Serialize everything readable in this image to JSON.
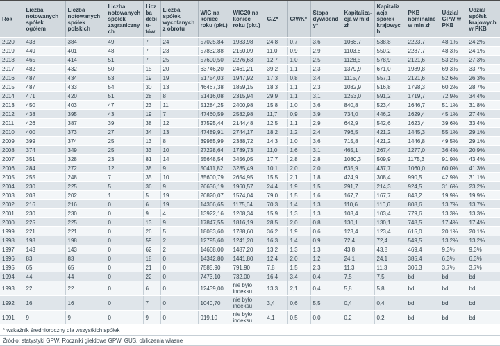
{
  "table": {
    "columns": [
      "Rok",
      "Liczba notowanych spółek ogółem",
      "Liczba notowanych spółek polskich",
      "Liczba notowanych spółek zagranicznych",
      "Liczba debiu­tów",
      "Liczba spółek wycofanych z obrotu",
      "WIG na koniec roku (pkt.)",
      "WIG20 na koniec roku (pkt.)",
      "C/Z*",
      "C/WK*",
      "Stopa dywidendy*",
      "Kapitaliza­cja w mld zł",
      "Kapitaliza­cja spółek krajowych",
      "PKB nominalne w mln zł",
      "Udział GPW w PKB",
      "Udział spółek krajowych w PKB"
    ],
    "rows": [
      [
        "2020",
        "433",
        "384",
        "49",
        "7",
        "24",
        "57025,84",
        "1983,98",
        "24,8",
        "0,7",
        "3,6",
        "1068,7",
        "538,8",
        "2223,7",
        "48,1%",
        "24,2%"
      ],
      [
        "2019",
        "449",
        "401",
        "48",
        "7",
        "23",
        "57832,88",
        "2150,09",
        "11,0",
        "0,9",
        "2,9",
        "1103,8",
        "550,2",
        "2287,7",
        "48,3%",
        "24,1%"
      ],
      [
        "2018",
        "465",
        "414",
        "51",
        "7",
        "25",
        "57690,50",
        "2276,63",
        "12,7",
        "1,0",
        "2,5",
        "1128,5",
        "578,9",
        "2121,6",
        "53,2%",
        "27,3%"
      ],
      [
        "2017",
        "482",
        "432",
        "50",
        "15",
        "20",
        "63746,20",
        "2461,21",
        "39,2",
        "1,1",
        "2,3",
        "1379,9",
        "671,0",
        "1989,8",
        "69,3%",
        "33,7%"
      ],
      [
        "2016",
        "487",
        "434",
        "53",
        "19",
        "19",
        "51754,03",
        "1947,92",
        "17,3",
        "0,8",
        "3,4",
        "1115,7",
        "557,1",
        "2121,6",
        "52,6%",
        "26,3%"
      ],
      [
        "2015",
        "487",
        "433",
        "54",
        "30",
        "13",
        "46467,38",
        "1859,15",
        "18,3",
        "1,1",
        "2,3",
        "1082,9",
        "516,8",
        "1798,3",
        "60,2%",
        "28,7%"
      ],
      [
        "2014",
        "471",
        "420",
        "51",
        "28",
        "8",
        "51416,08",
        "2315,94",
        "29,9",
        "1,1",
        "3,1",
        "1253,0",
        "591,2",
        "1719,7",
        "72,9%",
        "34,4%"
      ],
      [
        "2013",
        "450",
        "403",
        "47",
        "23",
        "11",
        "51284,25",
        "2400,98",
        "15,8",
        "1,0",
        "3,6",
        "840,8",
        "523,4",
        "1646,7",
        "51,1%",
        "31,8%"
      ],
      [
        "2012",
        "438",
        "395",
        "43",
        "19",
        "7",
        "47460,59",
        "2582,98",
        "11,7",
        "0,9",
        "3,9",
        "734,0",
        "446,2",
        "1629,4",
        "45,1%",
        "27,4%"
      ],
      [
        "2011",
        "426",
        "387",
        "39",
        "38",
        "12",
        "37595,44",
        "2144,48",
        "12,5",
        "1,1",
        "2,9",
        "642,9",
        "542,6",
        "1623,4",
        "39,6%",
        "33,4%"
      ],
      [
        "2010",
        "400",
        "373",
        "27",
        "34",
        "13",
        "47489,91",
        "2744,17",
        "18,2",
        "1,2",
        "2,4",
        "796,5",
        "421,2",
        "1445,3",
        "55,1%",
        "29,1%"
      ],
      [
        "2009",
        "399",
        "374",
        "25",
        "13",
        "8",
        "39985,99",
        "2388,72",
        "14,3",
        "1,0",
        "3,6",
        "715,8",
        "421,2",
        "1446,8",
        "49,5%",
        "29,1%"
      ],
      [
        "2008",
        "374",
        "349",
        "25",
        "33",
        "10",
        "27228,64",
        "1789,73",
        "11,0",
        "1,6",
        "3,1",
        "465,1",
        "267,4",
        "1277,0",
        "36,4%",
        "20,9%"
      ],
      [
        "2007",
        "351",
        "328",
        "23",
        "81",
        "14",
        "55648,54",
        "3456,05",
        "17,7",
        "2,8",
        "2,8",
        "1080,3",
        "509,9",
        "1175,3",
        "91,9%",
        "43,4%"
      ],
      [
        "2006",
        "284",
        "272",
        "12",
        "38",
        "9",
        "50411,82",
        "3285,49",
        "10,1",
        "2,0",
        "2,0",
        "635,9",
        "437,7",
        "1060,0",
        "60,0%",
        "41,3%"
      ],
      [
        "2005",
        "255",
        "248",
        "7",
        "35",
        "10",
        "35600,79",
        "2654,95",
        "15,5",
        "2,1",
        "1,8",
        "424,9",
        "308,4",
        "990,5",
        "42,9%",
        "31,1%"
      ],
      [
        "2004",
        "230",
        "225",
        "5",
        "36",
        "9",
        "26636,19",
        "1960,57",
        "24,4",
        "1,9",
        "1,5",
        "291,7",
        "214,3",
        "924,5",
        "31,6%",
        "23,2%"
      ],
      [
        "2003",
        "203",
        "202",
        "1",
        "5",
        "19",
        "20820,07",
        "1574,04",
        "79,0",
        "1,5",
        "1,6",
        "167,7",
        "167,7",
        "843,2",
        "19,9%",
        "19,9%"
      ],
      [
        "2002",
        "216",
        "216",
        "0",
        "6",
        "19",
        "14366,65",
        "1175,64",
        "70,3",
        "1,4",
        "1,3",
        "110,6",
        "110,6",
        "808,6",
        "13,7%",
        "13,7%"
      ],
      [
        "2001",
        "230",
        "230",
        "0",
        "9",
        "4",
        "13922,16",
        "1208,34",
        "15,9",
        "1,3",
        "1,3",
        "103,4",
        "103,4",
        "779,6",
        "13,3%",
        "13,3%"
      ],
      [
        "2000",
        "225",
        "225",
        "0",
        "13",
        "9",
        "17847,55",
        "1816,19",
        "28,5",
        "2,0",
        "0,8",
        "130,1",
        "130,1",
        "748,5",
        "17,4%",
        "17,4%"
      ],
      [
        "1999",
        "221",
        "221",
        "0",
        "26",
        "5",
        "18083,60",
        "1788,60",
        "36,2",
        "1,9",
        "0,6",
        "123,4",
        "123,4",
        "615,0",
        "20,1%",
        "20,1%"
      ],
      [
        "1998",
        "198",
        "198",
        "0",
        "59",
        "2",
        "12795,60",
        "1241,20",
        "16,3",
        "1,4",
        "0,9",
        "72,4",
        "72,4",
        "549,5",
        "13,2%",
        "13,2%"
      ],
      [
        "1997",
        "143",
        "143",
        "0",
        "62",
        "2",
        "14668,00",
        "1487,20",
        "13,2",
        "1,3",
        "1,3",
        "43,8",
        "43,8",
        "469,4",
        "9,3%",
        "9,3%"
      ],
      [
        "1996",
        "83",
        "83",
        "0",
        "18",
        "0",
        "14342,80",
        "1441,80",
        "12,4",
        "2,0",
        "1,2",
        "24,1",
        "24,1",
        "385,4",
        "6,3%",
        "6,3%"
      ],
      [
        "1995",
        "65",
        "65",
        "0",
        "21",
        "0",
        "7585,90",
        "791,90",
        "7,8",
        "1,5",
        "2,3",
        "11,3",
        "11,3",
        "306,3",
        "3,7%",
        "3,7%"
      ],
      [
        "1994",
        "44",
        "44",
        "0",
        "22",
        "0",
        "7473,10",
        "732,00",
        "16,4",
        "3,4",
        "0,4",
        "7,5",
        "7,5",
        "bd",
        "bd",
        "bd"
      ],
      [
        "1993",
        "22",
        "22",
        "0",
        "6",
        "0",
        "12439,00",
        "nie było indeksu",
        "13,3",
        "2,1",
        "0,4",
        "5,8",
        "5,8",
        "bd",
        "bd",
        "bd"
      ],
      [
        "1992",
        "16",
        "16",
        "0",
        "7",
        "0",
        "1040,70",
        "nie było indeksu",
        "3,4",
        "0,6",
        "5,5",
        "0,4",
        "0,4",
        "bd",
        "bd",
        "bd"
      ],
      [
        "1991",
        "9",
        "9",
        "0",
        "9",
        "0",
        "919,10",
        "nie było indeksu",
        "4,1",
        "0,5",
        "0,0",
        "0,2",
        "0,2",
        "bd",
        "bd",
        "bd"
      ]
    ],
    "footnotes": [
      "* wskaźnik średnioroczny dla wszystkich spółek",
      "Źródło: statystyki GPW, Roczniki giełdowe GPW, GUS, obliczenia własne"
    ]
  },
  "colors": {
    "header_bg": "#d2d9de",
    "row_shaded_bg": "#dfe5ea",
    "row_plain_bg": "#f3f6f8",
    "text": "#35454f",
    "top_border": "#4a4a4a"
  }
}
